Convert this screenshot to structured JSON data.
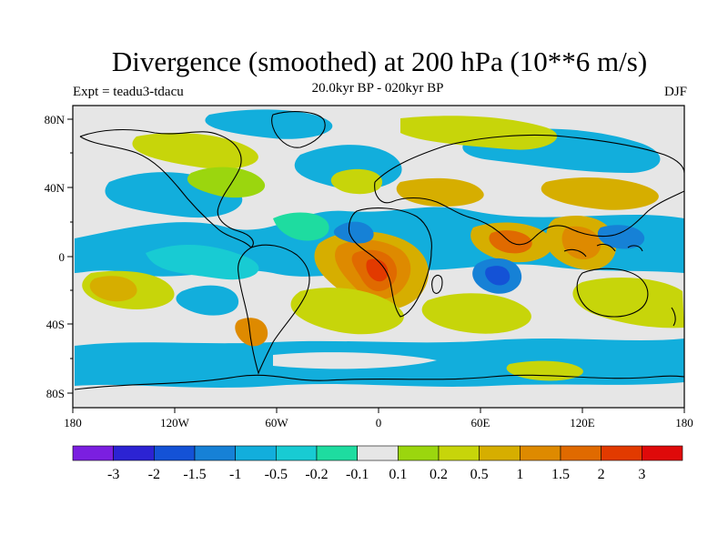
{
  "title": "Divergence (smoothed) at 200 hPa (10**6 m/s)",
  "subtitle": "20.0kyr BP - 020kyr BP",
  "experiment": "Expt = teadu3-tdacu",
  "season": "DJF",
  "latitude_labels": [
    "80N",
    "40N",
    "0",
    "40S",
    "80S"
  ],
  "longitude_labels": [
    "180",
    "120W",
    "60W",
    "0",
    "60E",
    "120E",
    "180"
  ],
  "colorbar": {
    "colors": [
      "#7b1fe0",
      "#2c23d3",
      "#1452d6",
      "#1681d6",
      "#12aedc",
      "#18cbd3",
      "#1edca0",
      "#e6e6e6",
      "#9bd60e",
      "#c7d50a",
      "#d6ae00",
      "#de8a00",
      "#e06a00",
      "#e23a00",
      "#df0a0a"
    ],
    "labels": [
      "-3",
      "-2",
      "-1.5",
      "-1",
      "-0.5",
      "-0.2",
      "-0.1",
      "0.1",
      "0.2",
      "0.5",
      "1",
      "1.5",
      "2",
      "3"
    ]
  },
  "field_palette": {
    "strong_conv": "#1452d6",
    "mod_conv": "#1681d6",
    "conv": "#12aedc",
    "weak_conv": "#18cbd3",
    "very_weak_conv": "#1edca0",
    "neutral": "#e6e6e6",
    "very_weak_div": "#9bd60e",
    "weak_div": "#c7d50a",
    "div": "#d6ae00",
    "mod_div": "#de8a00",
    "strong_div": "#e06a00",
    "max_div": "#e23a00",
    "coast": "#000000"
  }
}
